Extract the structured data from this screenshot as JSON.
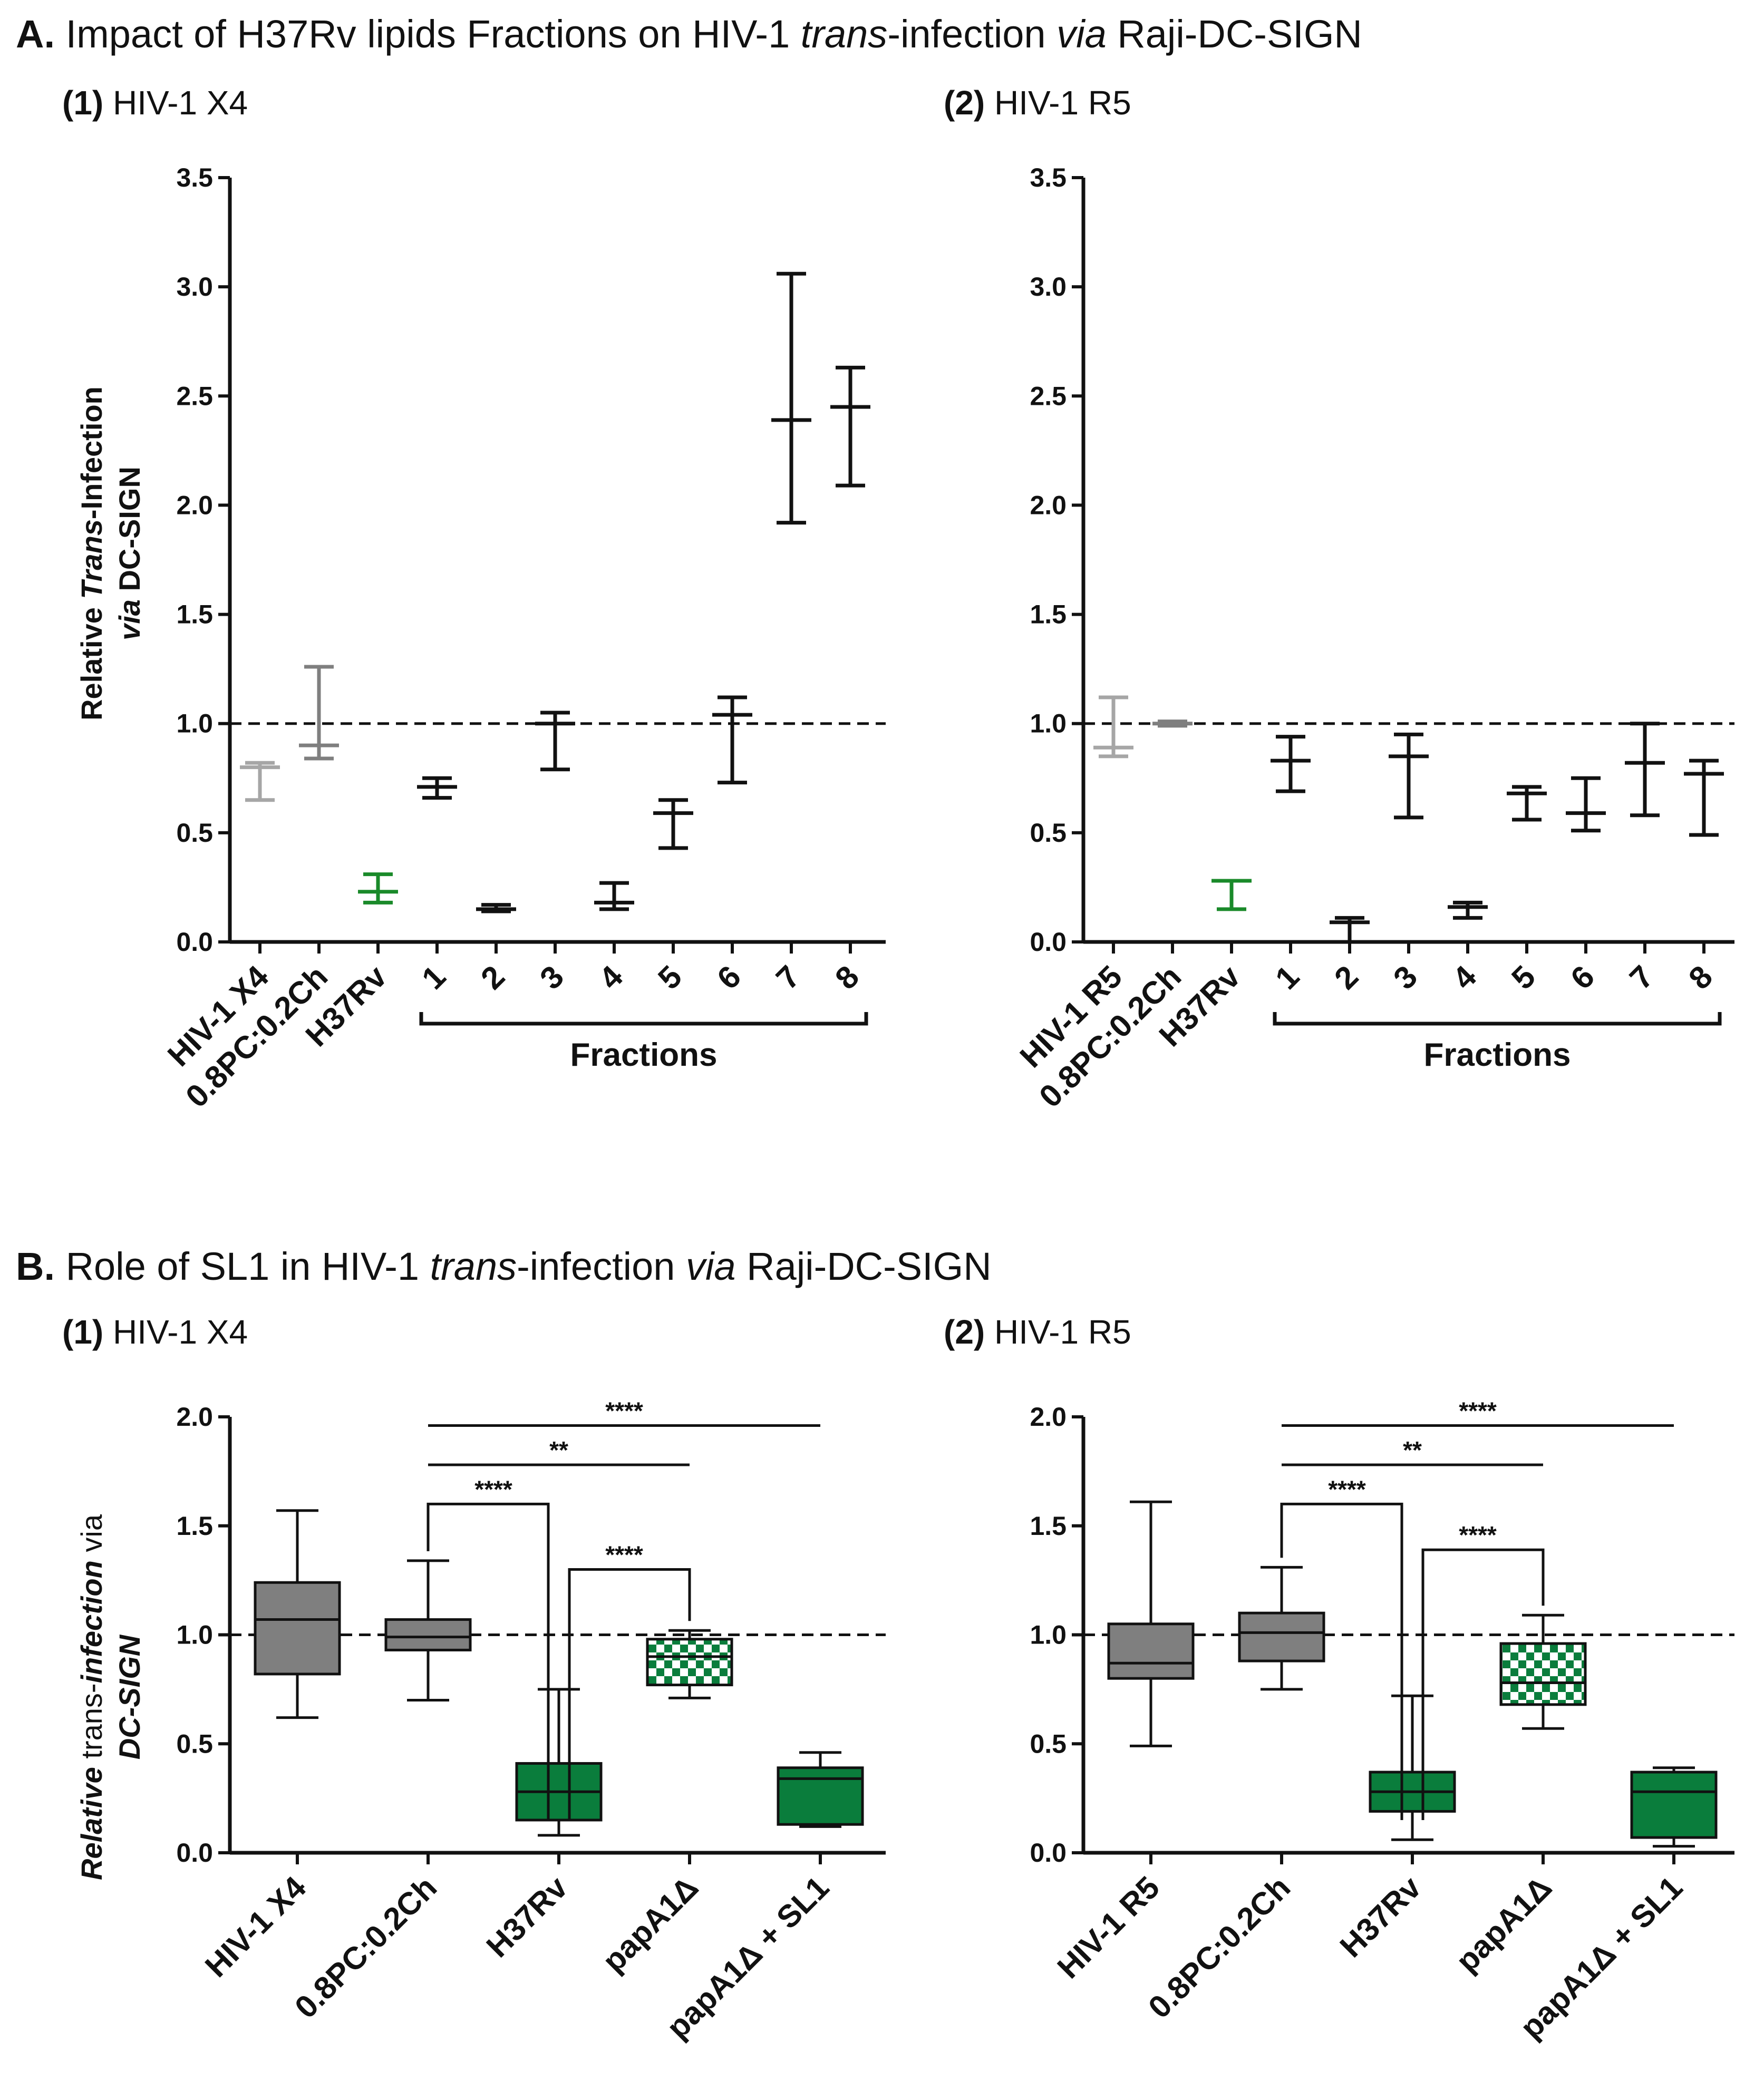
{
  "panel_a": {
    "letter": "A.",
    "title_parts": [
      "Impact of H37Rv lipids Fractions on HIV-1 ",
      "trans",
      "-infection ",
      "via",
      " Raji-DC-SIGN"
    ]
  },
  "panel_b": {
    "letter": "B.",
    "title_parts": [
      "Role of SL1 in HIV-1 ",
      "trans",
      "-infection ",
      "via",
      " Raji-DC-SIGN"
    ]
  },
  "subpanels": {
    "x4_num": "(1)",
    "x4_label": "HIV-1 X4",
    "r5_num": "(2)",
    "r5_label": "HIV-1 R5"
  },
  "colors": {
    "black": "#111111",
    "gray_dark": "#7f7f7f",
    "gray_light": "#a6a6a6",
    "green": "#1a8a2a",
    "box_green": "#0a7d3c"
  },
  "chart_data": [
    {
      "id": "A1",
      "type": "errorbar",
      "title": "HIV-1 X4",
      "ylabel_parts": [
        "Relative ",
        "Trans",
        "-Infection",
        "via",
        " DC-SIGN"
      ],
      "ylim": [
        0,
        3.5
      ],
      "yticks": [
        "0.0",
        "0.5",
        "1.0",
        "1.5",
        "2.0",
        "2.5",
        "3.0",
        "3.5"
      ],
      "reference_line": 1.0,
      "group_label": "Fractions",
      "categories": [
        "HIV-1 X4",
        "0.8PC:0.2Ch",
        "H37Rv",
        "1",
        "2",
        "3",
        "4",
        "5",
        "6",
        "7",
        "8"
      ],
      "series": [
        {
          "name": "HIV-1 X4",
          "mean": 0.8,
          "low": 0.65,
          "high": 0.82,
          "color": "#a6a6a6"
        },
        {
          "name": "0.8PC:0.2Ch",
          "mean": 0.9,
          "low": 0.84,
          "high": 1.26,
          "color": "#7f7f7f"
        },
        {
          "name": "H37Rv",
          "mean": 0.23,
          "low": 0.18,
          "high": 0.31,
          "color": "#1a8a2a"
        },
        {
          "name": "1",
          "mean": 0.71,
          "low": 0.66,
          "high": 0.75,
          "color": "#111111"
        },
        {
          "name": "2",
          "mean": 0.15,
          "low": 0.14,
          "high": 0.17,
          "color": "#111111"
        },
        {
          "name": "3",
          "mean": 1.0,
          "low": 0.79,
          "high": 1.05,
          "color": "#111111"
        },
        {
          "name": "4",
          "mean": 0.18,
          "low": 0.15,
          "high": 0.27,
          "color": "#111111"
        },
        {
          "name": "5",
          "mean": 0.59,
          "low": 0.43,
          "high": 0.65,
          "color": "#111111"
        },
        {
          "name": "6",
          "mean": 1.04,
          "low": 0.73,
          "high": 1.12,
          "color": "#111111"
        },
        {
          "name": "7",
          "mean": 2.39,
          "low": 1.92,
          "high": 3.06,
          "color": "#111111"
        },
        {
          "name": "8",
          "mean": 2.45,
          "low": 2.09,
          "high": 2.63,
          "color": "#111111"
        }
      ]
    },
    {
      "id": "A2",
      "type": "errorbar",
      "title": "HIV-1 R5",
      "ylim": [
        0,
        3.5
      ],
      "yticks": [
        "0.0",
        "0.5",
        "1.0",
        "1.5",
        "2.0",
        "2.5",
        "3.0",
        "3.5"
      ],
      "reference_line": 1.0,
      "group_label": "Fractions",
      "categories": [
        "HIV-1 R5",
        "0.8PC:0.2Ch",
        "H37Rv",
        "1",
        "2",
        "3",
        "4",
        "5",
        "6",
        "7",
        "8"
      ],
      "series": [
        {
          "name": "HIV-1 R5",
          "mean": 0.89,
          "low": 0.85,
          "high": 1.12,
          "color": "#a6a6a6"
        },
        {
          "name": "0.8PC:0.2Ch",
          "mean": 1.0,
          "low": 0.99,
          "high": 1.01,
          "color": "#7f7f7f"
        },
        {
          "name": "H37Rv",
          "mean": 0.28,
          "low": 0.15,
          "high": 0.28,
          "color": "#1a8a2a"
        },
        {
          "name": "1",
          "mean": 0.83,
          "low": 0.69,
          "high": 0.94,
          "color": "#111111"
        },
        {
          "name": "2",
          "mean": 0.09,
          "low": 0.0,
          "high": 0.11,
          "color": "#111111"
        },
        {
          "name": "3",
          "mean": 0.85,
          "low": 0.57,
          "high": 0.95,
          "color": "#111111"
        },
        {
          "name": "4",
          "mean": 0.16,
          "low": 0.11,
          "high": 0.18,
          "color": "#111111"
        },
        {
          "name": "5",
          "mean": 0.68,
          "low": 0.56,
          "high": 0.71,
          "color": "#111111"
        },
        {
          "name": "6",
          "mean": 0.59,
          "low": 0.51,
          "high": 0.75,
          "color": "#111111"
        },
        {
          "name": "7",
          "mean": 0.82,
          "low": 0.58,
          "high": 1.0,
          "color": "#111111"
        },
        {
          "name": "8",
          "mean": 0.77,
          "low": 0.49,
          "high": 0.83,
          "color": "#111111"
        }
      ]
    },
    {
      "id": "B1",
      "type": "box",
      "title": "HIV-1 X4",
      "ylabel_parts": [
        "Relative",
        " trans-",
        "infection",
        " via",
        "DC-SIGN"
      ],
      "ylim": [
        0,
        2.0
      ],
      "yticks": [
        "0.0",
        "0.5",
        "1.0",
        "1.5",
        "2.0"
      ],
      "reference_line": 1.0,
      "categories": [
        "HIV-1 X4",
        "0.8PC:0.2Ch",
        "H37Rv",
        "papA1Δ",
        "papA1Δ + SL1"
      ],
      "boxes": [
        {
          "name": "HIV-1 X4",
          "min": 0.62,
          "q1": 0.82,
          "median": 1.07,
          "q3": 1.24,
          "max": 1.57,
          "fill": "gray"
        },
        {
          "name": "0.8PC:0.2Ch",
          "min": 0.7,
          "q1": 0.93,
          "median": 0.99,
          "q3": 1.07,
          "max": 1.34,
          "fill": "gray"
        },
        {
          "name": "H37Rv",
          "min": 0.08,
          "q1": 0.15,
          "median": 0.28,
          "q3": 0.41,
          "max": 0.75,
          "fill": "green"
        },
        {
          "name": "papA1Δ",
          "min": 0.71,
          "q1": 0.77,
          "median": 0.9,
          "q3": 0.98,
          "max": 1.02,
          "fill": "checker"
        },
        {
          "name": "papA1Δ + SL1",
          "min": 0.12,
          "q1": 0.13,
          "median": 0.34,
          "q3": 0.39,
          "max": 0.46,
          "fill": "green"
        }
      ],
      "significance": [
        {
          "from": 1,
          "to": 4,
          "label": "****",
          "y": 1.96,
          "type": "line"
        },
        {
          "from": 1,
          "to": 3,
          "label": "**",
          "y": 1.78,
          "type": "line"
        },
        {
          "from": 1,
          "to": 2,
          "label": "****",
          "y": 1.6,
          "type": "bracket"
        },
        {
          "from": 2,
          "to": 3,
          "label": "****",
          "y": 1.3,
          "type": "bracket"
        }
      ]
    },
    {
      "id": "B2",
      "type": "box",
      "title": "HIV-1 R5",
      "ylim": [
        0,
        2.0
      ],
      "yticks": [
        "0.0",
        "0.5",
        "1.0",
        "1.5",
        "2.0"
      ],
      "reference_line": 1.0,
      "categories": [
        "HIV-1 R5",
        "0.8PC:0.2Ch",
        "H37Rv",
        "papA1Δ",
        "papA1Δ + SL1"
      ],
      "boxes": [
        {
          "name": "HIV-1 R5",
          "min": 0.49,
          "q1": 0.8,
          "median": 0.87,
          "q3": 1.05,
          "max": 1.61,
          "fill": "gray"
        },
        {
          "name": "0.8PC:0.2Ch",
          "min": 0.75,
          "q1": 0.88,
          "median": 1.01,
          "q3": 1.1,
          "max": 1.31,
          "fill": "gray"
        },
        {
          "name": "H37Rv",
          "min": 0.06,
          "q1": 0.19,
          "median": 0.28,
          "q3": 0.37,
          "max": 0.72,
          "fill": "green"
        },
        {
          "name": "papA1Δ",
          "min": 0.57,
          "q1": 0.68,
          "median": 0.78,
          "q3": 0.96,
          "max": 1.09,
          "fill": "checker"
        },
        {
          "name": "papA1Δ + SL1",
          "min": 0.03,
          "q1": 0.07,
          "median": 0.28,
          "q3": 0.37,
          "max": 0.39,
          "fill": "green"
        }
      ],
      "significance": [
        {
          "from": 1,
          "to": 4,
          "label": "****",
          "y": 1.96,
          "type": "line"
        },
        {
          "from": 1,
          "to": 3,
          "label": "**",
          "y": 1.78,
          "type": "line"
        },
        {
          "from": 1,
          "to": 2,
          "label": "****",
          "y": 1.6,
          "type": "bracket"
        },
        {
          "from": 2,
          "to": 3,
          "label": "****",
          "y": 1.39,
          "type": "bracket"
        }
      ]
    }
  ]
}
